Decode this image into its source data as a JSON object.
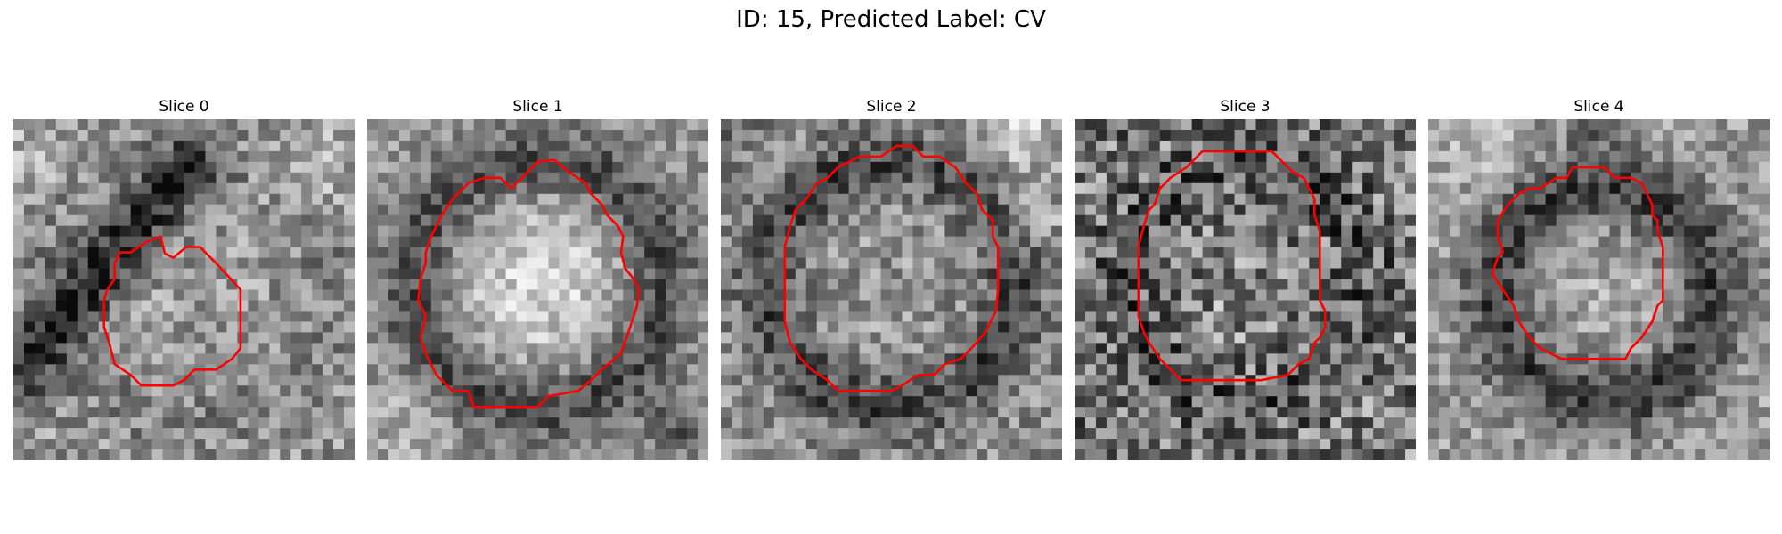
{
  "figure": {
    "title": "ID: 15, Predicted Label: CV"
  },
  "panels": [
    {
      "title": "Slice 0"
    },
    {
      "title": "Slice 1"
    },
    {
      "title": "Slice 2"
    },
    {
      "title": "Slice 3"
    },
    {
      "title": "Slice 4"
    }
  ],
  "colors": {
    "contour": "#ff0000",
    "background": "#ffffff",
    "colormap": "grayscale"
  }
}
